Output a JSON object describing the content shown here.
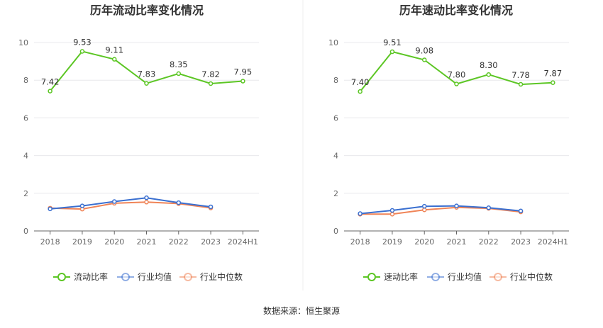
{
  "footer": {
    "source": "数据来源：恒生聚源"
  },
  "chart_data": [
    {
      "type": "line",
      "title": "历年流动比率变化情况",
      "categories": [
        "2018",
        "2019",
        "2020",
        "2021",
        "2022",
        "2023",
        "2024H1"
      ],
      "ylim": [
        0,
        10
      ],
      "yticks": [
        0,
        2,
        4,
        6,
        8,
        10
      ],
      "grid": true,
      "legend_position": "bottom",
      "series": [
        {
          "name": "流动比率",
          "color": "#5cc624",
          "values": [
            7.42,
            9.53,
            9.11,
            7.83,
            8.35,
            7.82,
            7.95
          ],
          "labels": [
            "7.42",
            "9.53",
            "9.11",
            "7.83",
            "8.35",
            "7.82",
            "7.95"
          ]
        },
        {
          "name": "行业均值",
          "color": "#3a6fd0",
          "values": [
            1.17,
            1.33,
            1.56,
            1.76,
            1.5,
            1.28,
            null
          ]
        },
        {
          "name": "行业中位数",
          "color": "#f08457",
          "values": [
            1.21,
            1.16,
            1.47,
            1.53,
            1.45,
            1.22,
            null
          ]
        }
      ]
    },
    {
      "type": "line",
      "title": "历年速动比率变化情况",
      "categories": [
        "2018",
        "2019",
        "2020",
        "2021",
        "2022",
        "2023",
        "2024H1"
      ],
      "ylim": [
        0,
        10
      ],
      "yticks": [
        0,
        2,
        4,
        6,
        8,
        10
      ],
      "grid": true,
      "legend_position": "bottom",
      "series": [
        {
          "name": "速动比率",
          "color": "#5cc624",
          "values": [
            7.4,
            9.51,
            9.08,
            7.8,
            8.3,
            7.78,
            7.87
          ],
          "labels": [
            "7.40",
            "9.51",
            "9.08",
            "7.80",
            "8.30",
            "7.78",
            "7.87"
          ]
        },
        {
          "name": "行业均值",
          "color": "#3a6fd0",
          "values": [
            0.92,
            1.09,
            1.31,
            1.33,
            1.23,
            1.06,
            null
          ]
        },
        {
          "name": "行业中位数",
          "color": "#f08457",
          "values": [
            0.89,
            0.89,
            1.12,
            1.25,
            1.2,
            1.01,
            null
          ]
        }
      ]
    }
  ]
}
